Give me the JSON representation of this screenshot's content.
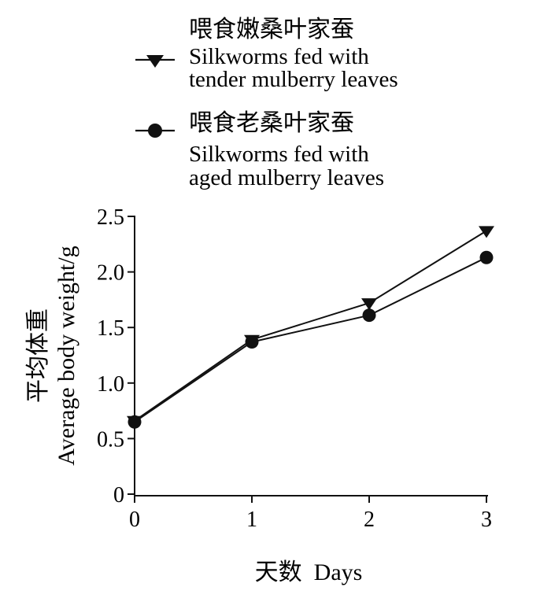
{
  "chart_data": {
    "type": "line",
    "x": [
      0,
      1,
      2,
      3
    ],
    "xlim": [
      0,
      3
    ],
    "ylim": [
      0,
      2.5
    ],
    "xticks": [
      "0",
      "1",
      "2",
      "3"
    ],
    "yticks": [
      "0",
      "0.5",
      "1.0",
      "1.5",
      "2.0",
      "2.5"
    ],
    "xlabel": "天数  Days",
    "ylabel_cn": "平均体重",
    "ylabel_en": "Average body weight/g",
    "legend_position": "top",
    "series": [
      {
        "name_cn": "喂食嫩桑叶家蚕",
        "name_en_line1": "Silkworms fed with",
        "name_en_line2": "tender mulberry leaves",
        "marker": "triangle-down",
        "color": "#111111",
        "values": [
          0.66,
          1.39,
          1.72,
          2.37
        ]
      },
      {
        "name_cn": "喂食老桑叶家蚕",
        "name_en_line1": "Silkworms fed with",
        "name_en_line2": "aged mulberry leaves",
        "marker": "circle",
        "color": "#111111",
        "values": [
          0.65,
          1.37,
          1.61,
          2.13
        ]
      }
    ]
  }
}
